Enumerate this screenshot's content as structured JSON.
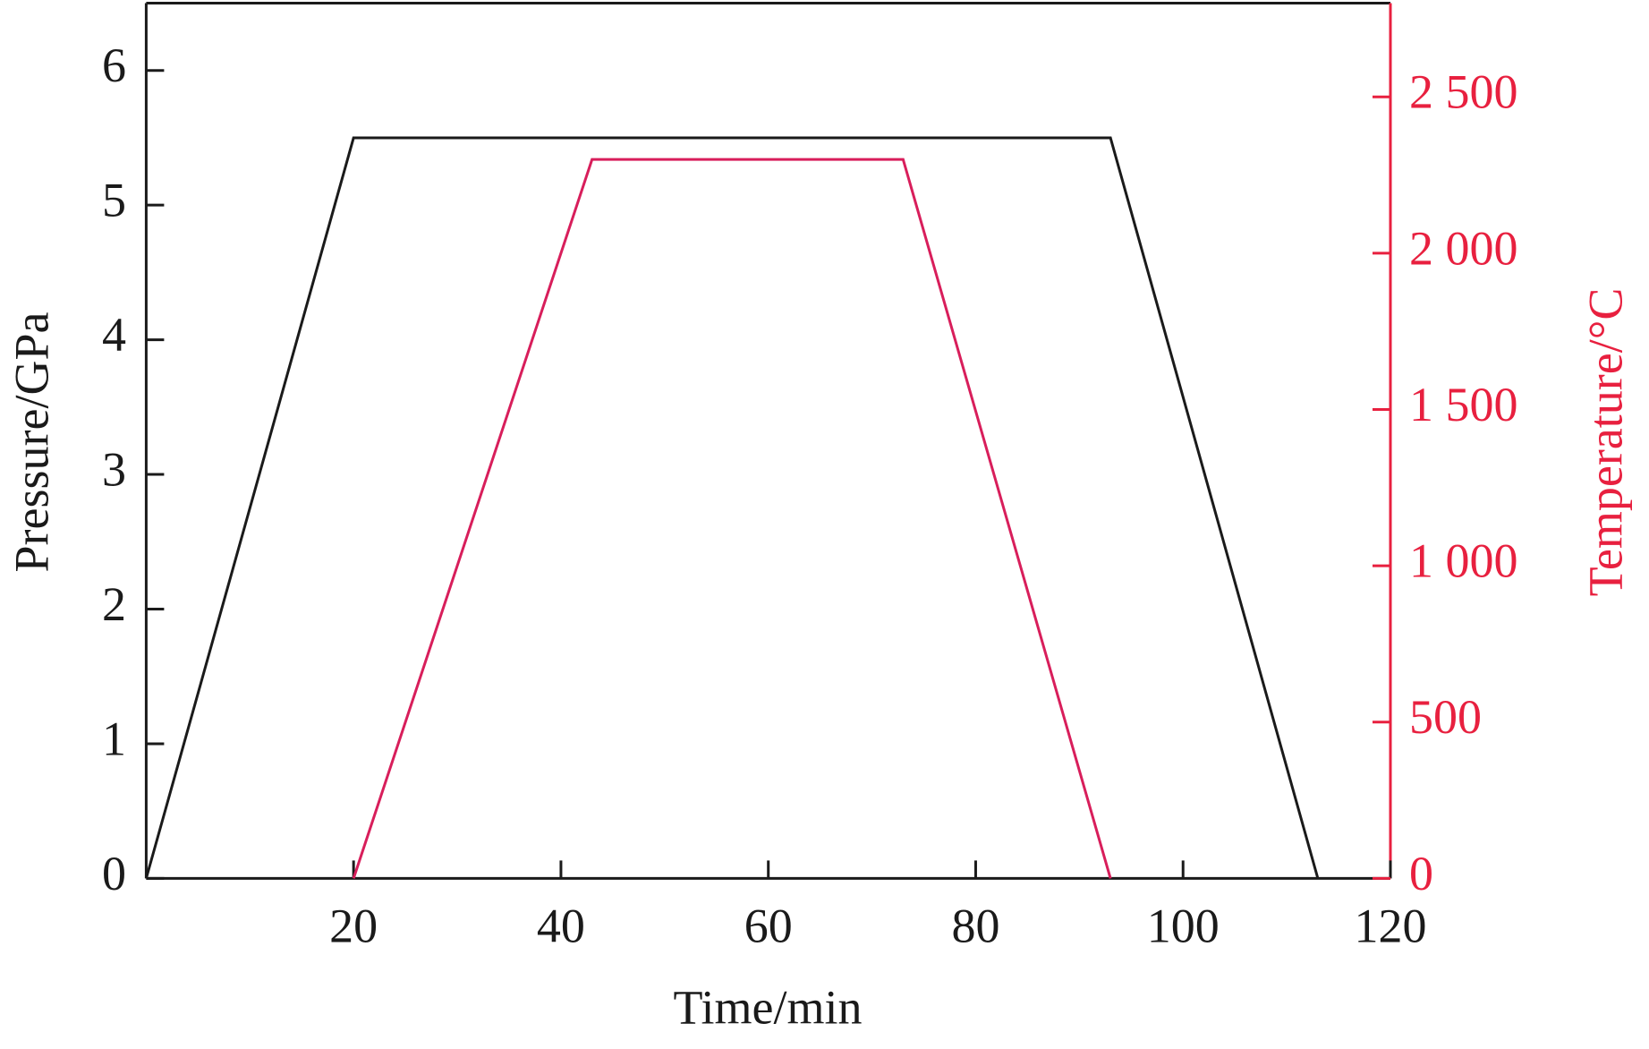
{
  "chart_data": {
    "type": "line",
    "x_label": "Time/min",
    "y_label": "Pressure/GPa",
    "y2_label": "Temperature/°C",
    "xlim": [
      0,
      120
    ],
    "xticks": [
      20,
      40,
      60,
      80,
      100,
      120
    ],
    "ylim": [
      0,
      6.5
    ],
    "yticks": [
      0,
      1,
      2,
      3,
      4,
      5,
      6
    ],
    "y2lim": [
      0,
      2800
    ],
    "y2ticks": [
      0,
      500,
      {
        "value": 1000,
        "label": "1 000"
      },
      {
        "value": 1500,
        "label": "1 500"
      },
      {
        "value": 2000,
        "label": "2 000"
      },
      {
        "value": 2500,
        "label": "2 500"
      }
    ],
    "y2_color": "#e8203f",
    "series": [
      {
        "color": "#1a1a1a",
        "x": [
          0,
          20,
          93,
          113
        ],
        "values": [
          0,
          5.5,
          5.5,
          0
        ]
      },
      {
        "color": "#d81e5b",
        "axis": "y2",
        "x": [
          20,
          43,
          73,
          93
        ],
        "values": [
          0,
          2300,
          2300,
          0
        ]
      }
    ]
  }
}
